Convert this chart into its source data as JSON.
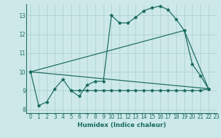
{
  "xlabel": "Humidex (Indice chaleur)",
  "bg_color": "#cce8e8",
  "line_color": "#1a6b5e",
  "grid_color": "#aacccc",
  "xlim": [
    -0.5,
    23
  ],
  "ylim": [
    7.8,
    13.6
  ],
  "yticks": [
    8,
    9,
    10,
    11,
    12,
    13
  ],
  "xticks": [
    0,
    1,
    2,
    3,
    4,
    5,
    6,
    7,
    8,
    9,
    10,
    11,
    12,
    13,
    14,
    15,
    16,
    17,
    18,
    19,
    20,
    21,
    22,
    23
  ],
  "line1_x": [
    0,
    1,
    2,
    3,
    4,
    5,
    6,
    7,
    8,
    9,
    10,
    11,
    12,
    13,
    14,
    15,
    16,
    17,
    18,
    19,
    20,
    21,
    22
  ],
  "line1_y": [
    10,
    8.2,
    8.4,
    9.1,
    9.6,
    9.0,
    8.7,
    9.3,
    9.5,
    9.5,
    13.0,
    12.6,
    12.6,
    12.9,
    13.25,
    13.4,
    13.5,
    13.3,
    12.8,
    12.2,
    10.4,
    9.8,
    9.1
  ],
  "line2_x": [
    5,
    6,
    7,
    8,
    9,
    10,
    11,
    12,
    13,
    14,
    15,
    16,
    17,
    18,
    19,
    20,
    21,
    22
  ],
  "line2_y": [
    9.0,
    9.0,
    9.0,
    9.0,
    9.0,
    9.0,
    9.0,
    9.0,
    9.0,
    9.0,
    9.0,
    9.0,
    9.0,
    9.0,
    9.0,
    9.0,
    9.0,
    9.1
  ],
  "line3_x": [
    0,
    22
  ],
  "line3_y": [
    10,
    9.1
  ],
  "line4_x": [
    0,
    19,
    22
  ],
  "line4_y": [
    10,
    12.2,
    9.1
  ]
}
